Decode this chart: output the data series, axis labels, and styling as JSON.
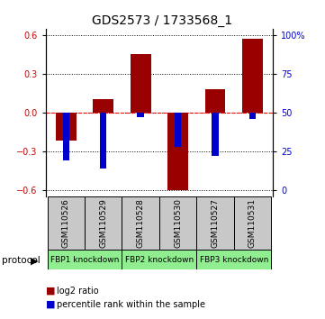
{
  "title": "GDS2573 / 1733568_1",
  "samples": [
    "GSM110526",
    "GSM110529",
    "GSM110528",
    "GSM110530",
    "GSM110527",
    "GSM110531"
  ],
  "log2_ratio": [
    -0.22,
    0.1,
    0.45,
    -0.6,
    0.18,
    0.57
  ],
  "percentile_rank_raw": [
    19,
    14,
    47,
    28,
    22,
    46
  ],
  "protocols": [
    {
      "label": "FBP1 knockdown",
      "start": 0,
      "end": 2
    },
    {
      "label": "FBP2 knockdown",
      "start": 2,
      "end": 4
    },
    {
      "label": "FBP3 knockdown",
      "start": 4,
      "end": 6
    }
  ],
  "ylim": [
    -0.65,
    0.65
  ],
  "left_yticks": [
    -0.6,
    -0.3,
    0.0,
    0.3,
    0.6
  ],
  "bar_color_red": "#990000",
  "bar_color_blue": "#0000CC",
  "protocol_bg": "#90EE90",
  "sample_bg": "#C8C8C8",
  "title_fontsize": 10,
  "tick_fontsize": 7,
  "red_tick_color": "#CC0000",
  "blue_tick_color": "#0000CC"
}
